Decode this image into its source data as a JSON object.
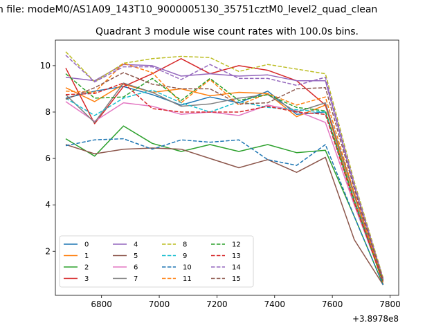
{
  "chart_data": {
    "type": "line",
    "suptitle": "n file: modeM0/AS1A09_143T10_9000005130_35751cztM0_level2_quad_clean",
    "title": "Quadrant 3 module wise count rates with 100.0s bins.",
    "x_offset_label": "+3.8978e8",
    "xlim": [
      6640,
      7830
    ],
    "ylim": [
      0.1,
      11.1
    ],
    "x_ticks": [
      6800,
      7000,
      7200,
      7400,
      7600,
      7800
    ],
    "y_ticks": [
      2,
      4,
      6,
      8,
      10
    ],
    "grid": false,
    "legend_position": "lower-left",
    "legend_columns": 4,
    "x": [
      6676,
      6776,
      6876,
      6976,
      7076,
      7176,
      7276,
      7376,
      7476,
      7576,
      7676,
      7776
    ],
    "series": [
      {
        "name": "0",
        "color": "#1f77b4",
        "dash": false,
        "values": [
          8.6,
          8.9,
          9.1,
          8.75,
          8.3,
          8.65,
          8.4,
          8.9,
          7.9,
          8.0,
          4.2,
          0.7
        ]
      },
      {
        "name": "1",
        "color": "#ff7f0e",
        "dash": false,
        "values": [
          9.05,
          8.45,
          9.2,
          8.85,
          9.0,
          8.7,
          8.85,
          8.8,
          7.8,
          8.3,
          4.2,
          0.6
        ]
      },
      {
        "name": "2",
        "color": "#2ca02c",
        "dash": false,
        "values": [
          6.85,
          6.1,
          7.4,
          6.65,
          6.3,
          6.6,
          6.3,
          6.6,
          6.25,
          6.35,
          3.5,
          0.55
        ]
      },
      {
        "name": "3",
        "color": "#d62728",
        "dash": false,
        "values": [
          9.9,
          7.5,
          9.1,
          9.65,
          10.3,
          9.65,
          10.0,
          9.8,
          9.35,
          8.3,
          4.5,
          0.75
        ]
      },
      {
        "name": "4",
        "color": "#9467bd",
        "dash": false,
        "values": [
          9.5,
          9.35,
          10.05,
          10.0,
          9.55,
          9.65,
          9.55,
          9.6,
          9.35,
          9.35,
          4.8,
          0.8
        ]
      },
      {
        "name": "5",
        "color": "#8c564b",
        "dash": false,
        "values": [
          6.6,
          6.2,
          6.4,
          6.45,
          6.4,
          6.0,
          5.6,
          5.95,
          5.4,
          6.05,
          2.5,
          0.55
        ]
      },
      {
        "name": "6",
        "color": "#e377c2",
        "dash": false,
        "values": [
          8.45,
          7.6,
          8.4,
          8.25,
          7.9,
          8.0,
          7.85,
          8.3,
          8.05,
          7.55,
          4.0,
          0.7
        ]
      },
      {
        "name": "7",
        "color": "#7f7f7f",
        "dash": false,
        "values": [
          8.75,
          7.55,
          9.25,
          8.85,
          8.25,
          8.35,
          8.6,
          8.75,
          8.0,
          8.4,
          4.4,
          0.7
        ]
      },
      {
        "name": "8",
        "color": "#bcbd22",
        "dash": true,
        "values": [
          10.6,
          9.3,
          10.1,
          10.3,
          10.4,
          10.35,
          9.75,
          10.05,
          9.85,
          9.65,
          5.0,
          0.85
        ]
      },
      {
        "name": "9",
        "color": "#17becf",
        "dash": true,
        "values": [
          8.6,
          7.85,
          8.6,
          8.95,
          8.4,
          8.0,
          8.45,
          8.2,
          8.1,
          8.0,
          4.1,
          0.7
        ]
      },
      {
        "name": "10",
        "color": "#1f77b4",
        "dash": true,
        "values": [
          6.55,
          6.8,
          6.85,
          6.4,
          6.8,
          6.7,
          6.8,
          5.95,
          5.7,
          6.6,
          3.5,
          0.55
        ]
      },
      {
        "name": "11",
        "color": "#ff7f0e",
        "dash": true,
        "values": [
          8.9,
          8.85,
          10.1,
          9.7,
          8.4,
          9.4,
          8.3,
          8.8,
          8.3,
          8.65,
          4.5,
          0.7
        ]
      },
      {
        "name": "12",
        "color": "#2ca02c",
        "dash": true,
        "values": [
          9.65,
          8.6,
          8.65,
          9.45,
          8.5,
          9.45,
          8.5,
          8.75,
          8.2,
          8.05,
          4.2,
          0.65
        ]
      },
      {
        "name": "13",
        "color": "#d62728",
        "dash": true,
        "values": [
          8.75,
          8.8,
          9.25,
          8.15,
          8.0,
          8.0,
          8.0,
          8.25,
          8.0,
          7.9,
          4.1,
          0.7
        ]
      },
      {
        "name": "14",
        "color": "#9467bd",
        "dash": true,
        "values": [
          10.45,
          9.3,
          9.95,
          9.95,
          9.4,
          10.05,
          9.45,
          9.45,
          9.15,
          9.5,
          4.9,
          0.8
        ]
      },
      {
        "name": "15",
        "color": "#8c564b",
        "dash": true,
        "values": [
          8.55,
          9.05,
          9.7,
          9.2,
          9.0,
          9.0,
          8.35,
          8.4,
          9.0,
          9.05,
          4.7,
          0.75
        ]
      }
    ]
  }
}
